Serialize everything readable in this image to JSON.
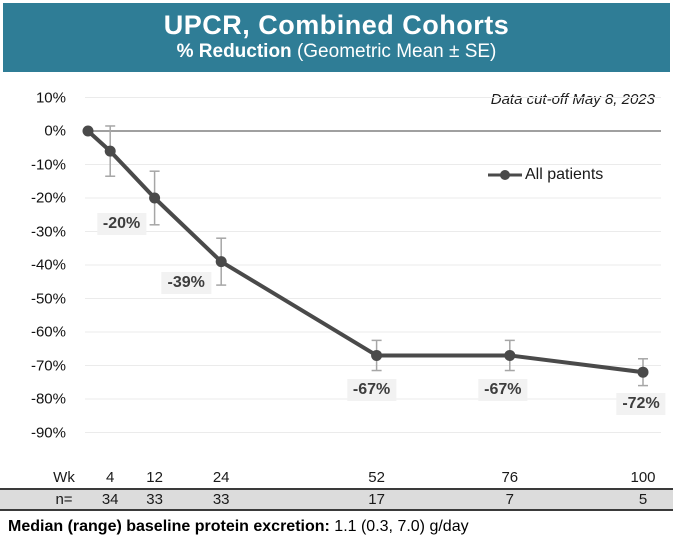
{
  "header": {
    "title": "UPCR, Combined Cohorts",
    "subtitle_bold": "% Reduction",
    "subtitle_rest": " (Geometric Mean ± SE)",
    "bg_color": "#2F7D96"
  },
  "annotations": {
    "data_cutoff": "Data cut-off May 8, 2023"
  },
  "legend": {
    "label": "All patients",
    "marker": "line-with-dot"
  },
  "chart_data": {
    "type": "line",
    "title": "UPCR, Combined Cohorts",
    "subtitle": "% Reduction (Geometric Mean ± SE)",
    "x_label": "Wk",
    "x": [
      0,
      4,
      12,
      24,
      52,
      76,
      100
    ],
    "series": [
      {
        "name": "All patients",
        "values": [
          0,
          -6,
          -20,
          -39,
          -67,
          -67,
          -72
        ],
        "se": [
          0,
          7.5,
          8,
          7,
          4.5,
          4.5,
          4
        ]
      }
    ],
    "point_labels": [
      "",
      "",
      "-20%",
      "-39%",
      "-67%",
      "-67%",
      "-72%"
    ],
    "ylim": [
      -90,
      10
    ],
    "ytick_values": [
      10,
      0,
      -10,
      -20,
      -30,
      -40,
      -50,
      -60,
      -70,
      -80,
      -90
    ],
    "ytick_labels": [
      "10%",
      "0%",
      "-10%",
      "-20%",
      "-30%",
      "-40%",
      "-50%",
      "-60%",
      "-70%",
      "-80%",
      "-90%"
    ],
    "grid": "horizontal-faint",
    "legend_position": "inside-top-right",
    "colors": {
      "series": "#4a4a4a",
      "error_bar": "#a6a6a6",
      "zero_line": "#808080",
      "gridline": "#ebebeb",
      "point_label_bg": "#f2f2f2",
      "point_label_text": "#3d3d3d",
      "n_band_bg": "#dcdcdc",
      "header_bg": "#2F7D96"
    }
  },
  "xaxis": {
    "row_label": "Wk",
    "tick_weeks": [
      4,
      12,
      24,
      52,
      76,
      100
    ],
    "ticks": [
      "4",
      "12",
      "24",
      "52",
      "76",
      "100"
    ]
  },
  "n_row": {
    "label": "n=",
    "values": [
      "34",
      "33",
      "33",
      "17",
      "7",
      "5"
    ]
  },
  "footer": {
    "bold": "Median (range) baseline protein excretion:",
    "regular": " 1.1  (0.3, 7.0) g/day"
  }
}
